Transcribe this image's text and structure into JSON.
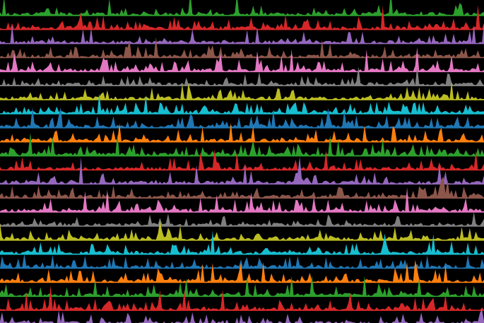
{
  "chart_data": {
    "type": "area",
    "title": "",
    "xlabel": "",
    "ylabel": "",
    "background": "#000000",
    "grid": false,
    "legend": "none",
    "stacked_tracks": true,
    "x_points": 240,
    "palette": [
      "#d62728",
      "#9467bd",
      "#8c564b",
      "#e377c2",
      "#7f7f7f",
      "#bcbd22",
      "#17becf",
      "#1f77b4",
      "#ff7f0e",
      "#2ca02c"
    ],
    "series": [
      {
        "color": "#2ca02c",
        "seed": 11,
        "density": 0.18
      },
      {
        "color": "#d62728",
        "seed": 12,
        "density": 0.22
      },
      {
        "color": "#9467bd",
        "seed": 13,
        "density": 0.12
      },
      {
        "color": "#8c564b",
        "seed": 14,
        "density": 0.2
      },
      {
        "color": "#e377c2",
        "seed": 15,
        "density": 0.28
      },
      {
        "color": "#7f7f7f",
        "seed": 16,
        "density": 0.16
      },
      {
        "color": "#bcbd22",
        "seed": 17,
        "density": 0.22
      },
      {
        "color": "#17becf",
        "seed": 18,
        "density": 0.3
      },
      {
        "color": "#1f77b4",
        "seed": 19,
        "density": 0.26
      },
      {
        "color": "#ff7f0e",
        "seed": 20,
        "density": 0.2
      },
      {
        "color": "#2ca02c",
        "seed": 21,
        "density": 0.32
      },
      {
        "color": "#d62728",
        "seed": 22,
        "density": 0.14
      },
      {
        "color": "#9467bd",
        "seed": 23,
        "density": 0.18
      },
      {
        "color": "#8c564b",
        "seed": 24,
        "density": 0.26
      },
      {
        "color": "#e377c2",
        "seed": 25,
        "density": 0.3
      },
      {
        "color": "#7f7f7f",
        "seed": 26,
        "density": 0.1
      },
      {
        "color": "#bcbd22",
        "seed": 27,
        "density": 0.24
      },
      {
        "color": "#17becf",
        "seed": 28,
        "density": 0.22
      },
      {
        "color": "#1f77b4",
        "seed": 29,
        "density": 0.2
      },
      {
        "color": "#ff7f0e",
        "seed": 30,
        "density": 0.18
      },
      {
        "color": "#2ca02c",
        "seed": 31,
        "density": 0.16
      },
      {
        "color": "#d62728",
        "seed": 32,
        "density": 0.2
      },
      {
        "color": "#9467bd",
        "seed": 33,
        "density": 0.14
      }
    ]
  }
}
